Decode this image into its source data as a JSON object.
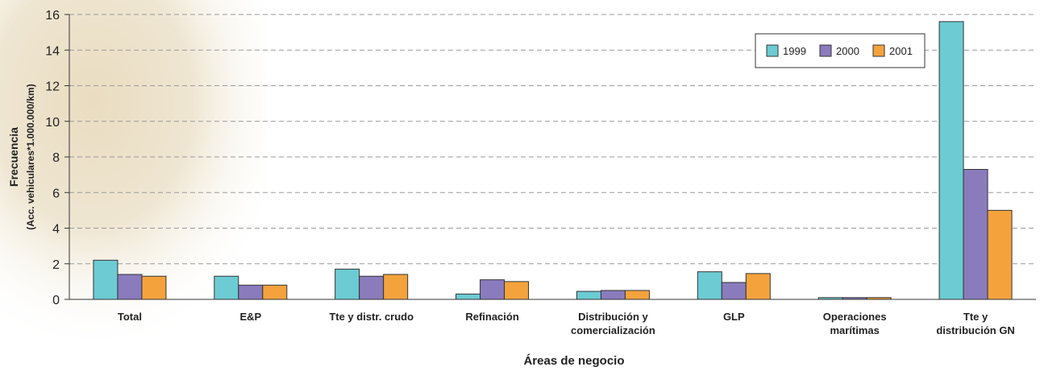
{
  "chart_data": {
    "type": "bar",
    "y_label": "Frecuencia",
    "y_label_sub": "(Acc. vehiculares*1.000.000/km)",
    "x_label": "Áreas de negocio",
    "categories": [
      "Total",
      "E&P",
      "Tte y distr. crudo",
      "Refinación",
      "Distribución y\ncomercialización",
      "GLP",
      "Operaciones\nmarítimas",
      "Tte y\ndistribución GN"
    ],
    "series": [
      {
        "name": "1999",
        "color": "#6ccbd3",
        "values": [
          2.2,
          1.3,
          1.7,
          0.3,
          0.45,
          1.55,
          0.1,
          15.6
        ]
      },
      {
        "name": "2000",
        "color": "#8a7bbd",
        "values": [
          1.4,
          0.8,
          1.3,
          1.1,
          0.5,
          0.95,
          0.1,
          7.3
        ]
      },
      {
        "name": "2001",
        "color": "#f4a33c",
        "values": [
          1.3,
          0.8,
          1.4,
          1.0,
          0.5,
          1.45,
          0.1,
          5.0
        ]
      }
    ],
    "ylim": [
      0,
      16
    ],
    "yticks": [
      0,
      2,
      4,
      6,
      8,
      10,
      12,
      14,
      16
    ],
    "grid": true,
    "legend": "top-right"
  }
}
